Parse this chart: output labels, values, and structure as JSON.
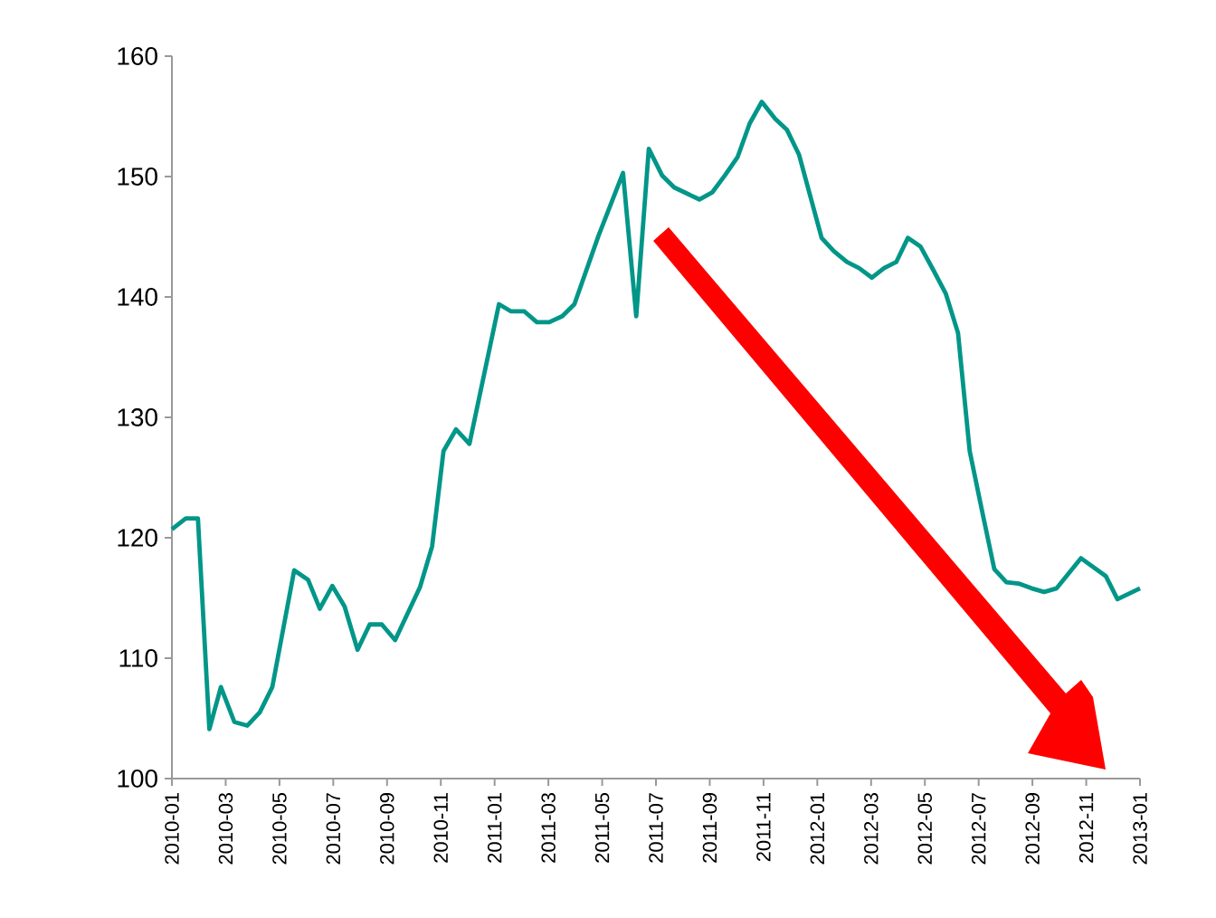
{
  "chart_data": {
    "type": "line",
    "x": [
      "2010-01-01",
      "2010-01-17",
      "2010-01-31",
      "2010-02-12",
      "2010-02-24",
      "2010-03-11",
      "2010-03-26",
      "2010-04-09",
      "2010-04-23",
      "2010-05-18",
      "2010-06-03",
      "2010-06-16",
      "2010-06-30",
      "2010-07-14",
      "2010-07-29",
      "2010-08-12",
      "2010-08-26",
      "2010-09-10",
      "2010-10-08",
      "2010-10-22",
      "2010-11-04",
      "2010-11-18",
      "2010-12-03",
      "2011-01-06",
      "2011-01-20",
      "2011-02-04",
      "2011-02-17",
      "2011-03-02",
      "2011-03-17",
      "2011-03-31",
      "2011-04-27",
      "2011-05-25",
      "2011-06-09",
      "2011-06-23",
      "2011-07-08",
      "2011-07-22",
      "2011-08-20",
      "2011-09-04",
      "2011-09-18",
      "2011-10-02",
      "2011-10-16",
      "2011-10-30",
      "2011-11-14",
      "2011-11-27",
      "2011-12-11",
      "2012-01-06",
      "2012-01-20",
      "2012-02-04",
      "2012-02-17",
      "2012-03-02",
      "2012-03-16",
      "2012-03-30",
      "2012-04-12",
      "2012-04-26",
      "2012-05-11",
      "2012-05-25",
      "2012-06-08",
      "2012-06-21",
      "2012-07-05",
      "2012-07-19",
      "2012-08-02",
      "2012-08-16",
      "2012-08-31",
      "2012-09-14",
      "2012-09-28",
      "2012-10-26",
      "2012-11-23",
      "2012-12-06",
      "2013-01-01"
    ],
    "series": [
      {
        "color": "#009688",
        "values": [
          120.7,
          121.6,
          121.6,
          104.1,
          107.6,
          104.7,
          104.4,
          105.5,
          107.6,
          117.3,
          116.5,
          114.1,
          116.0,
          114.3,
          110.7,
          112.8,
          112.8,
          111.5,
          115.9,
          119.3,
          127.2,
          129.0,
          127.8,
          139.4,
          138.8,
          138.8,
          137.9,
          137.9,
          138.4,
          139.4,
          145.1,
          150.3,
          138.4,
          152.3,
          150.1,
          149.1,
          148.1,
          148.7,
          150.1,
          151.6,
          154.4,
          156.2,
          154.8,
          153.9,
          151.8,
          144.9,
          143.8,
          142.9,
          142.4,
          141.6,
          142.4,
          142.9,
          144.9,
          144.2,
          142.2,
          140.3,
          137.0,
          127.2,
          122.2,
          117.4,
          116.3,
          116.2,
          115.8,
          115.5,
          115.8,
          118.3,
          116.8,
          114.9,
          115.8
        ]
      }
    ],
    "xlim": [
      "2010-01",
      "2013-01"
    ],
    "xticks": [
      "2010-01",
      "2010-03",
      "2010-05",
      "2010-07",
      "2010-09",
      "2010-11",
      "2011-01",
      "2011-03",
      "2011-05",
      "2011-07",
      "2011-09",
      "2011-11",
      "2012-01",
      "2012-03",
      "2012-05",
      "2012-07",
      "2012-09",
      "2012-11",
      "2013-01"
    ],
    "ylim": [
      100,
      160
    ],
    "yticks": [
      100,
      110,
      120,
      130,
      140,
      150,
      160
    ],
    "legend": false
  }
}
